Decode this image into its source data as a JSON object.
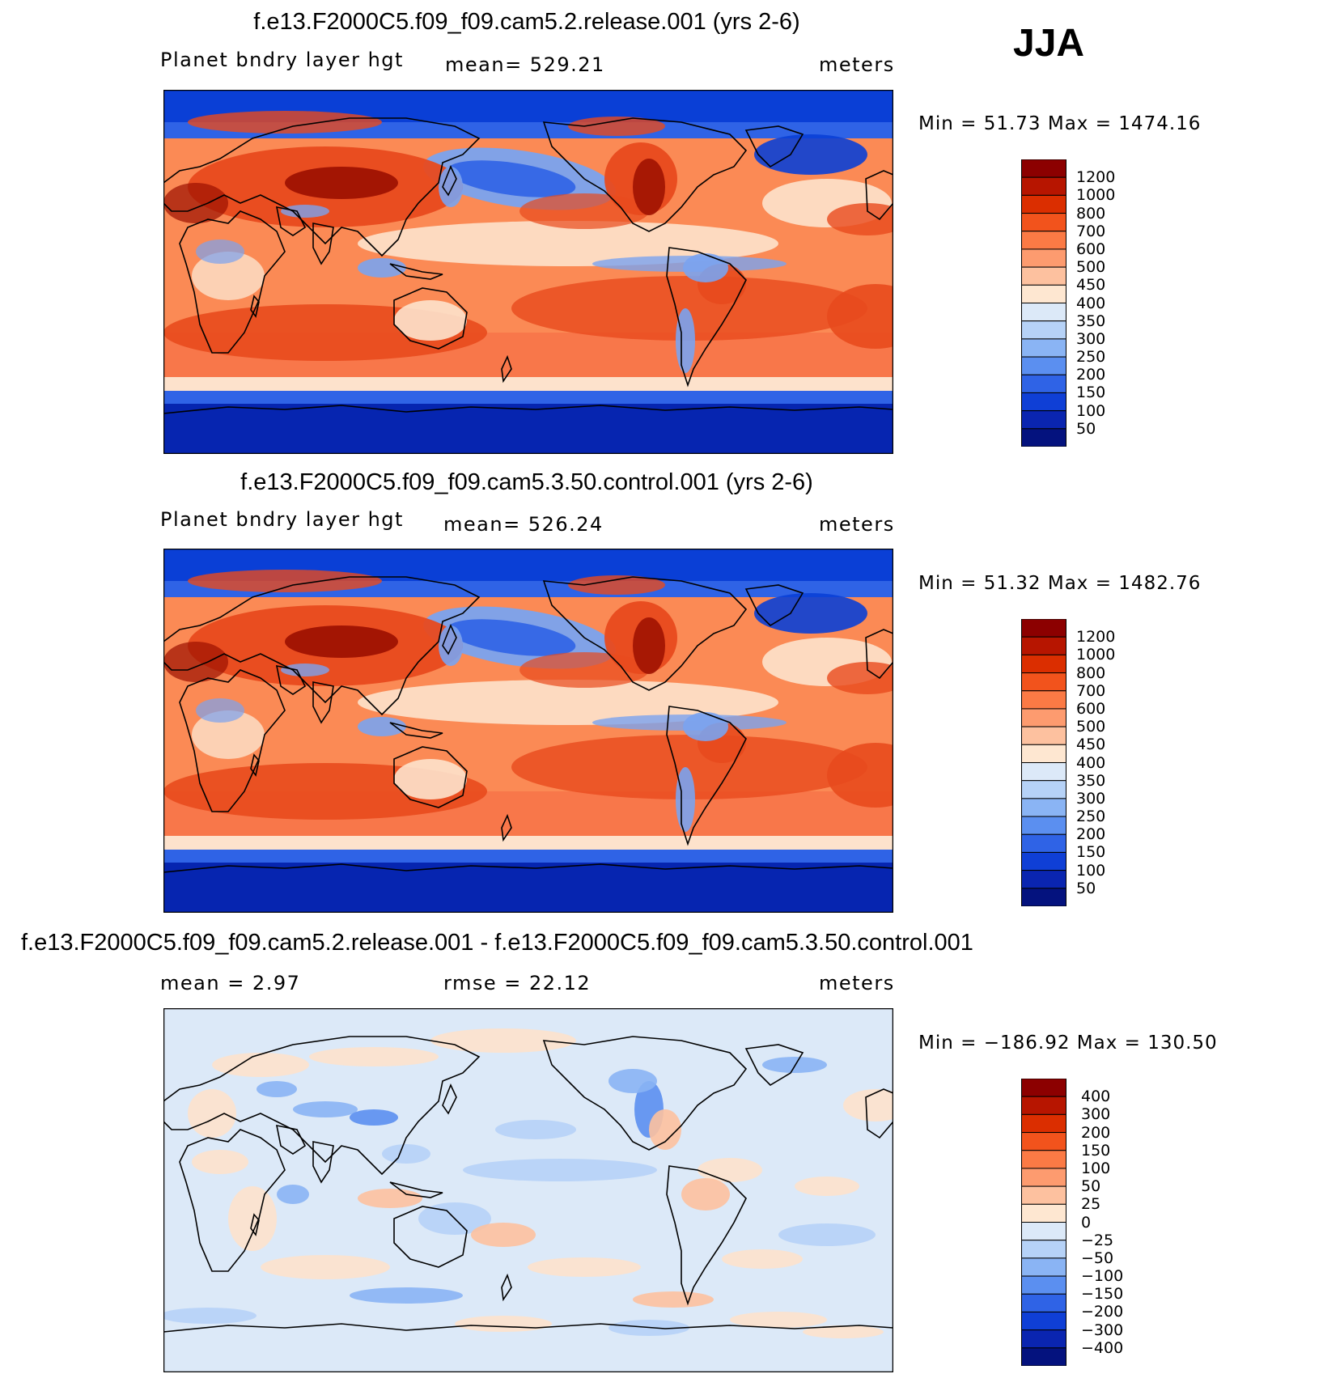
{
  "season": "JJA",
  "panels": [
    {
      "title": "f.e13.F2000C5.f09_f09.cam5.2.release.001 (yrs 2-6)",
      "left_label": "Planet bndry layer hgt",
      "center_label": "mean= 529.21",
      "units": "meters",
      "minmax": "Min =   51.73 Max  = 1474.16",
      "colorbar": {
        "levels": [
          "1200",
          "1000",
          "800",
          "700",
          "600",
          "500",
          "450",
          "400",
          "350",
          "300",
          "250",
          "200",
          "150",
          "100",
          "50"
        ],
        "colors": [
          "#8c0000",
          "#b71500",
          "#db2e00",
          "#f2531c",
          "#fb7a45",
          "#fd9b6f",
          "#fdc19f",
          "#fee7d1",
          "#dce9f8",
          "#b6d2f7",
          "#8ab4f4",
          "#5b8ff0",
          "#2f63e6",
          "#0f3fd6",
          "#0a25b0",
          "#04127e"
        ]
      },
      "mapcolors": {
        "northpole": "#0a3fd6",
        "land": "#e84a1d",
        "ocean": "#fb8a55",
        "southernocean": "#f8774a",
        "southpole": "#0625b0",
        "antarcticband": "#2f63e6",
        "tropicalband": "#fde2cc",
        "coldpools": "#7aa3ef",
        "hotspots": "#9b0f00"
      }
    },
    {
      "title": "f.e13.F2000C5.f09_f09.cam5.3.50.control.001 (yrs 2-6)",
      "left_label": "Planet bndry layer hgt",
      "center_label": "mean= 526.24",
      "units": "meters",
      "minmax": "Min =   51.32 Max  = 1482.76",
      "colorbar": {
        "levels": [
          "1200",
          "1000",
          "800",
          "700",
          "600",
          "500",
          "450",
          "400",
          "350",
          "300",
          "250",
          "200",
          "150",
          "100",
          "50"
        ],
        "colors": [
          "#8c0000",
          "#b71500",
          "#db2e00",
          "#f2531c",
          "#fb7a45",
          "#fd9b6f",
          "#fdc19f",
          "#fee7d1",
          "#dce9f8",
          "#b6d2f7",
          "#8ab4f4",
          "#5b8ff0",
          "#2f63e6",
          "#0f3fd6",
          "#0a25b0",
          "#04127e"
        ]
      },
      "mapcolors": {
        "northpole": "#0a3fd6",
        "land": "#e84a1d",
        "ocean": "#fb8a55",
        "southernocean": "#f8774a",
        "southpole": "#0625b0",
        "antarcticband": "#2f63e6",
        "tropicalband": "#fde2cc",
        "coldpools": "#7aa3ef",
        "hotspots": "#9b0f00"
      }
    },
    {
      "title": "f.e13.F2000C5.f09_f09.cam5.2.release.001 - f.e13.F2000C5.f09_f09.cam5.3.50.control.001",
      "left_label": "mean =    2.97",
      "center_label": "rmse =   22.12",
      "units": "meters",
      "minmax": "Min = −186.92 Max  = 130.50",
      "colorbar": {
        "levels": [
          "400",
          "300",
          "200",
          "150",
          "100",
          "50",
          "25",
          "0",
          "−25",
          "−50",
          "−100",
          "−150",
          "−200",
          "−300",
          "−400"
        ],
        "colors": [
          "#8c0000",
          "#b71500",
          "#db2e00",
          "#f2531c",
          "#fb7a45",
          "#fd9b6f",
          "#fdc19f",
          "#fee7d1",
          "#dce9f8",
          "#b6d2f7",
          "#8ab4f4",
          "#5b8ff0",
          "#2f63e6",
          "#0f3fd6",
          "#0a25b0",
          "#04127e"
        ]
      },
      "mapcolors": {
        "base": "#dce9f8",
        "warm": "#fde2cc",
        "warm2": "#fdc19f",
        "cool": "#b6d2f7",
        "cool2": "#8ab4f4",
        "cool3": "#5b8ff0",
        "hot": "#fb7a45"
      }
    }
  ]
}
